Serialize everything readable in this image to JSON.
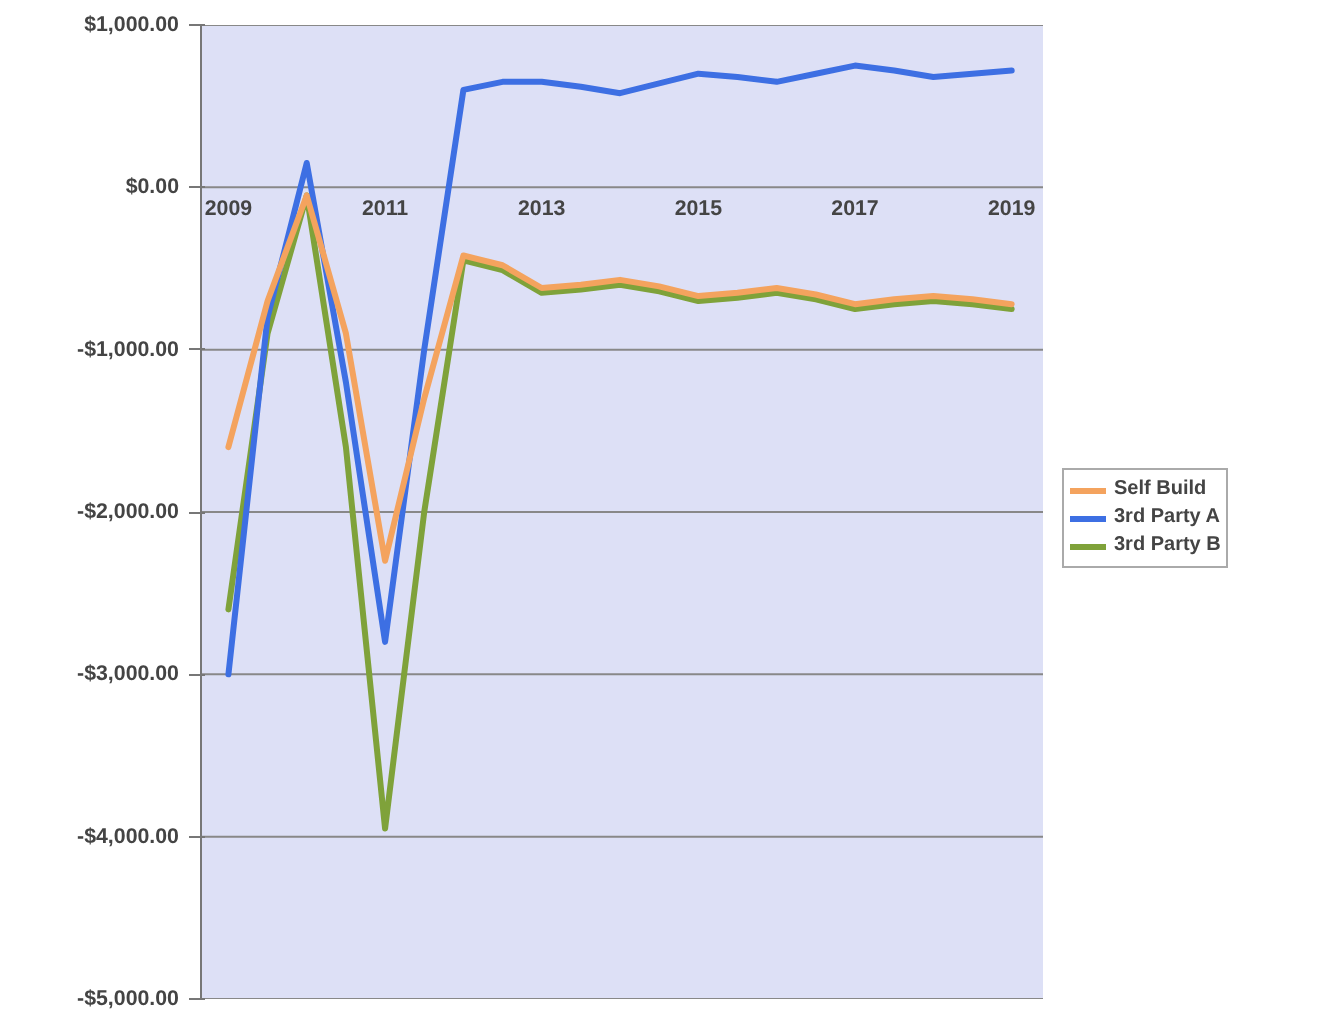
{
  "chart_data": {
    "type": "line",
    "x": [
      2009,
      2009.5,
      2010,
      2010.5,
      2011,
      2011.5,
      2012,
      2012.5,
      2013,
      2013.5,
      2014,
      2014.5,
      2015,
      2015.5,
      2016,
      2016.5,
      2017,
      2017.5,
      2018,
      2018.5,
      2019
    ],
    "series": [
      {
        "name": "Self Build",
        "color": "#f4a35e",
        "values": [
          -1600,
          -700,
          -50,
          -900,
          -2300,
          -1300,
          -420,
          -480,
          -620,
          -600,
          -570,
          -610,
          -670,
          -650,
          -620,
          -660,
          -720,
          -690,
          -670,
          -690,
          -720
        ]
      },
      {
        "name": "3rd Party A",
        "color": "#3d6fe3",
        "values": [
          -3000,
          -800,
          150,
          -1200,
          -2800,
          -1000,
          600,
          650,
          650,
          620,
          580,
          640,
          700,
          680,
          650,
          700,
          750,
          720,
          680,
          700,
          720
        ]
      },
      {
        "name": "3rd Party B",
        "color": "#7fa23a",
        "values": [
          -2600,
          -900,
          -50,
          -1600,
          -3950,
          -2000,
          -450,
          -510,
          -650,
          -630,
          -600,
          -640,
          -700,
          -680,
          -650,
          -690,
          -750,
          -720,
          -700,
          -720,
          -750
        ]
      }
    ],
    "xlim": [
      2008.65,
      2019.4
    ],
    "xticks": [
      2009,
      2011,
      2013,
      2015,
      2017,
      2019
    ],
    "ylim": [
      -5000,
      1000
    ],
    "yticks": [
      {
        "value": 1000,
        "label": "$1,000.00"
      },
      {
        "value": 0,
        "label": "$0.00"
      },
      {
        "value": -1000,
        "label": "-$1,000.00"
      },
      {
        "value": -2000,
        "label": "-$2,000.00"
      },
      {
        "value": -3000,
        "label": "-$3,000.00"
      },
      {
        "value": -4000,
        "label": "-$4,000.00"
      },
      {
        "value": -5000,
        "label": "-$5,000.00"
      }
    ],
    "grid": "y",
    "legend": "right",
    "marker": "none",
    "line_style": "solid"
  }
}
